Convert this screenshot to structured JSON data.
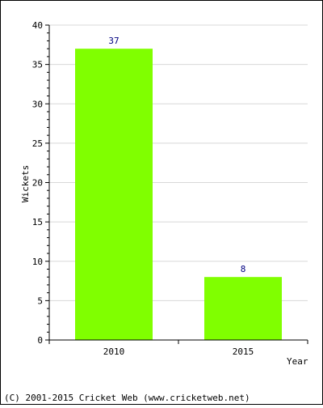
{
  "chart_data": {
    "type": "bar",
    "categories": [
      "2010",
      "2015"
    ],
    "values": [
      37,
      8
    ],
    "value_labels": [
      "37",
      "8"
    ],
    "xlabel": "Year",
    "ylabel": "Wickets",
    "ylim": [
      0,
      40
    ],
    "yticks": [
      0,
      5,
      10,
      15,
      20,
      25,
      30,
      35,
      40
    ],
    "ytick_labels": [
      "0",
      "5",
      "10",
      "15",
      "20",
      "25",
      "30",
      "35",
      "40"
    ],
    "grid": true,
    "bar_color": "#80FF00",
    "value_label_color": "#000080"
  },
  "footer": {
    "copyright": "(C) 2001-2015 Cricket Web (www.cricketweb.net)"
  }
}
